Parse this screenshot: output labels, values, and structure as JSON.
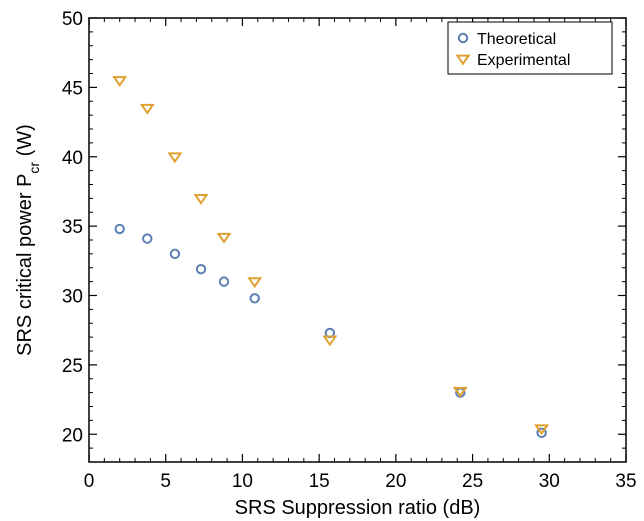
{
  "chart_data": {
    "type": "scatter",
    "xlabel": "SRS Suppression ratio (dB)",
    "ylabel": {
      "main": "SRS critical power P",
      "sub": "cr",
      "tail": " (W)"
    },
    "xlim": [
      0,
      35
    ],
    "ylim": [
      18,
      50
    ],
    "xticks": [
      0,
      5,
      10,
      15,
      20,
      25,
      30,
      35
    ],
    "yticks": [
      20,
      25,
      30,
      35,
      40,
      45,
      50
    ],
    "grid": false,
    "legend_position": "top-right",
    "series": [
      {
        "name": "Theoretical",
        "marker": "circle",
        "color": "#5b7fb5",
        "points": [
          [
            2.0,
            34.8
          ],
          [
            3.8,
            34.1
          ],
          [
            5.6,
            33.0
          ],
          [
            7.3,
            31.9
          ],
          [
            8.8,
            31.0
          ],
          [
            10.8,
            29.8
          ],
          [
            15.7,
            27.3
          ],
          [
            24.2,
            23.0
          ],
          [
            29.5,
            20.1
          ]
        ]
      },
      {
        "name": "Experimental",
        "marker": "triangle-down",
        "color": "#e0a030",
        "points": [
          [
            2.0,
            45.5
          ],
          [
            3.8,
            43.5
          ],
          [
            5.6,
            40.0
          ],
          [
            7.3,
            37.0
          ],
          [
            8.8,
            34.2
          ],
          [
            10.8,
            31.0
          ],
          [
            15.7,
            26.8
          ],
          [
            24.2,
            23.1
          ],
          [
            29.5,
            20.4
          ]
        ]
      }
    ]
  }
}
